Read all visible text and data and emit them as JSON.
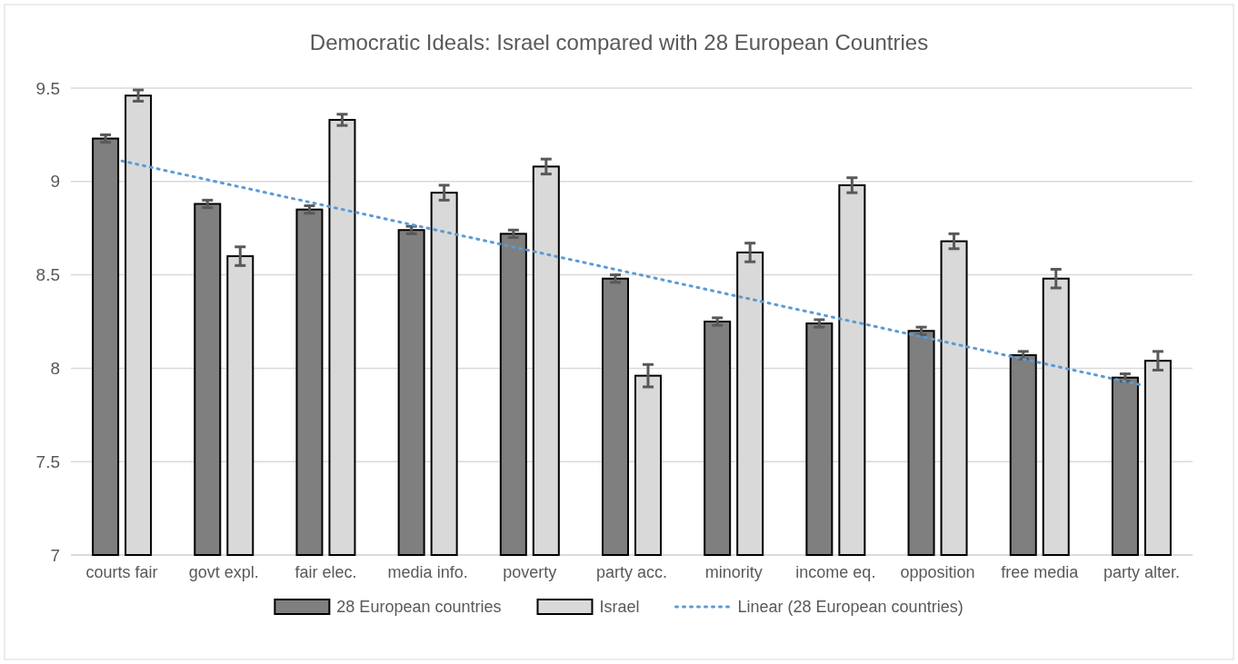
{
  "chart_data": {
    "type": "bar",
    "title": "Democratic Ideals: Israel compared with 28 European Countries",
    "categories": [
      "courts fair",
      "govt expl.",
      "fair elec.",
      "media info.",
      "poverty",
      "party acc.",
      "minority",
      "income eq.",
      "opposition",
      "free media",
      "party alter."
    ],
    "series": [
      {
        "name": "28 European countries",
        "color": "#7f7f7f",
        "values": [
          9.23,
          8.88,
          8.85,
          8.74,
          8.72,
          8.48,
          8.25,
          8.24,
          8.2,
          8.07,
          7.95
        ],
        "errors": [
          0.02,
          0.02,
          0.02,
          0.02,
          0.02,
          0.02,
          0.02,
          0.02,
          0.02,
          0.02,
          0.02
        ]
      },
      {
        "name": "Israel",
        "color": "#d9d9d9",
        "values": [
          9.46,
          8.6,
          9.33,
          8.94,
          9.08,
          7.96,
          8.62,
          8.98,
          8.68,
          8.48,
          8.04
        ],
        "errors": [
          0.03,
          0.05,
          0.03,
          0.04,
          0.04,
          0.06,
          0.05,
          0.04,
          0.04,
          0.05,
          0.05
        ]
      },
      {
        "name": "Linear (28 European countries)",
        "type": "line",
        "color": "#5b9bd5",
        "line_style": "dotted",
        "values": [
          9.11,
          8.99,
          8.87,
          8.75,
          8.63,
          8.51,
          8.39,
          8.27,
          8.15,
          8.03,
          7.91
        ]
      }
    ],
    "ylim": [
      7,
      9.5
    ],
    "yticks": [
      7,
      7.5,
      8,
      8.5,
      9,
      9.5
    ],
    "grid": "y",
    "legend": "bottom"
  }
}
